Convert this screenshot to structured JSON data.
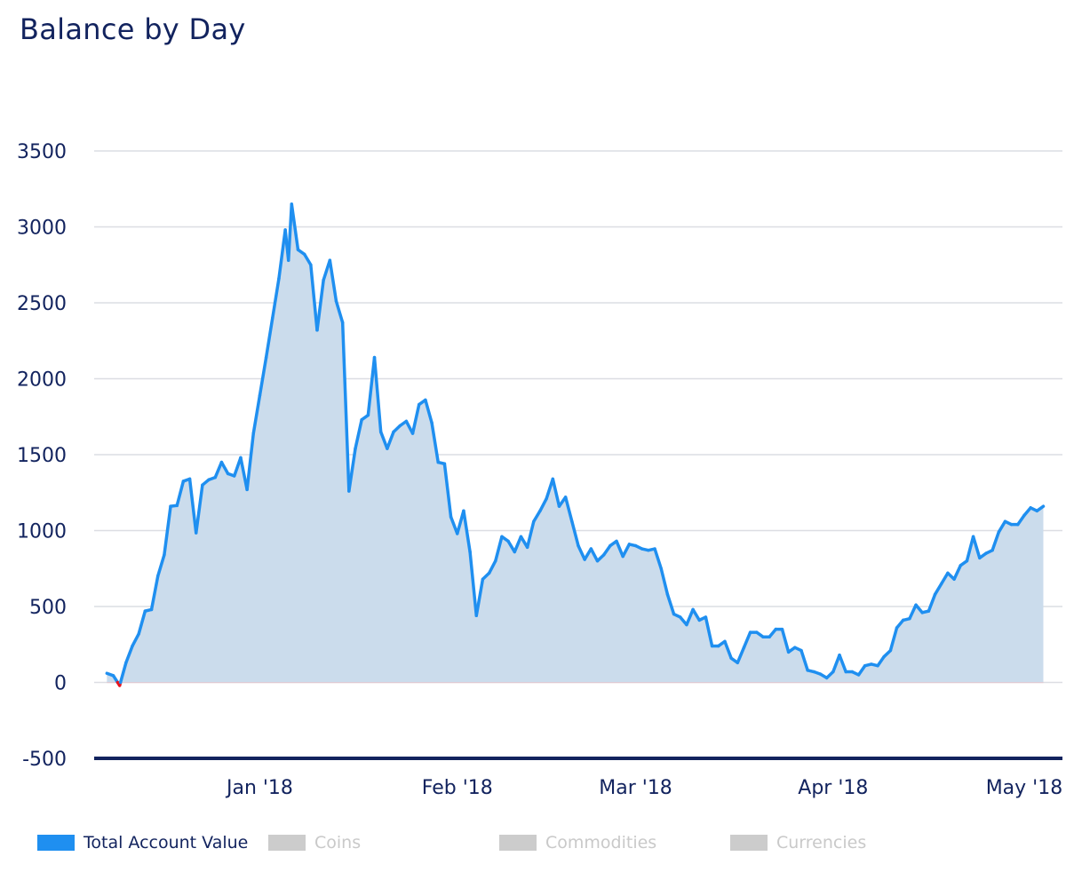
{
  "title": "Balance by Day",
  "chart_data": {
    "type": "area",
    "title": "Balance by Day",
    "xlabel": "",
    "ylabel": "",
    "ylim": [
      -500,
      3500
    ],
    "y_ticks": [
      3500,
      3000,
      2500,
      2000,
      1500,
      1000,
      500,
      0,
      -500
    ],
    "x_ticks": [
      {
        "label": "Jan '18",
        "x": "2018-01-01"
      },
      {
        "label": "Feb '18",
        "x": "2018-02-01"
      },
      {
        "label": "Mar '18",
        "x": "2018-03-01"
      },
      {
        "label": "Apr '18",
        "x": "2018-04-01"
      },
      {
        "label": "May '18",
        "x": "2018-05-01"
      }
    ],
    "xlim": [
      "2017-12-06",
      "2018-05-07"
    ],
    "grid": true,
    "legend_position": "bottom",
    "series": [
      {
        "name": "Total Account Value",
        "color": "#1f8ff0",
        "negative_color": "#e8141e",
        "fill_color": "#cbdcec",
        "points": [
          [
            "2017-12-08",
            60
          ],
          [
            "2017-12-09",
            45
          ],
          [
            "2017-12-10",
            -20
          ],
          [
            "2017-12-11",
            130
          ],
          [
            "2017-12-12",
            240
          ],
          [
            "2017-12-13",
            320
          ],
          [
            "2017-12-14",
            470
          ],
          [
            "2017-12-15",
            480
          ],
          [
            "2017-12-16",
            700
          ],
          [
            "2017-12-17",
            840
          ],
          [
            "2017-12-18",
            1160
          ],
          [
            "2017-12-19",
            1165
          ],
          [
            "2017-12-20",
            1325
          ],
          [
            "2017-12-21",
            1340
          ],
          [
            "2017-12-22",
            985
          ],
          [
            "2017-12-23",
            1300
          ],
          [
            "2017-12-24",
            1335
          ],
          [
            "2017-12-25",
            1350
          ],
          [
            "2017-12-26",
            1450
          ],
          [
            "2017-12-27",
            1375
          ],
          [
            "2017-12-28",
            1360
          ],
          [
            "2017-12-29",
            1480
          ],
          [
            "2017-12-30",
            1270
          ],
          [
            "2017-12-31",
            1640
          ],
          [
            "2018-01-01",
            1890
          ],
          [
            "2018-01-02",
            2140
          ],
          [
            "2018-01-03",
            2400
          ],
          [
            "2018-01-04",
            2660
          ],
          [
            "2018-01-05",
            2980
          ],
          [
            "2018-01-05T12:00",
            2780
          ],
          [
            "2018-01-06",
            3150
          ],
          [
            "2018-01-07",
            2850
          ],
          [
            "2018-01-08",
            2820
          ],
          [
            "2018-01-09",
            2750
          ],
          [
            "2018-01-10",
            2320
          ],
          [
            "2018-01-11",
            2650
          ],
          [
            "2018-01-12",
            2780
          ],
          [
            "2018-01-13",
            2510
          ],
          [
            "2018-01-14",
            2370
          ],
          [
            "2018-01-15",
            1260
          ],
          [
            "2018-01-16",
            1540
          ],
          [
            "2018-01-17",
            1730
          ],
          [
            "2018-01-18",
            1760
          ],
          [
            "2018-01-19",
            2140
          ],
          [
            "2018-01-20",
            1650
          ],
          [
            "2018-01-21",
            1540
          ],
          [
            "2018-01-22",
            1650
          ],
          [
            "2018-01-23",
            1690
          ],
          [
            "2018-01-24",
            1720
          ],
          [
            "2018-01-25",
            1640
          ],
          [
            "2018-01-26",
            1830
          ],
          [
            "2018-01-27",
            1860
          ],
          [
            "2018-01-28",
            1710
          ],
          [
            "2018-01-29",
            1450
          ],
          [
            "2018-01-30",
            1440
          ],
          [
            "2018-01-31",
            1090
          ],
          [
            "2018-02-01",
            980
          ],
          [
            "2018-02-02",
            1130
          ],
          [
            "2018-02-03",
            860
          ],
          [
            "2018-02-04",
            440
          ],
          [
            "2018-02-05",
            680
          ],
          [
            "2018-02-06",
            720
          ],
          [
            "2018-02-07",
            800
          ],
          [
            "2018-02-08",
            960
          ],
          [
            "2018-02-09",
            930
          ],
          [
            "2018-02-10",
            860
          ],
          [
            "2018-02-11",
            960
          ],
          [
            "2018-02-12",
            890
          ],
          [
            "2018-02-13",
            1060
          ],
          [
            "2018-02-14",
            1130
          ],
          [
            "2018-02-15",
            1210
          ],
          [
            "2018-02-16",
            1340
          ],
          [
            "2018-02-17",
            1160
          ],
          [
            "2018-02-18",
            1220
          ],
          [
            "2018-02-19",
            1060
          ],
          [
            "2018-02-20",
            900
          ],
          [
            "2018-02-21",
            810
          ],
          [
            "2018-02-22",
            880
          ],
          [
            "2018-02-23",
            800
          ],
          [
            "2018-02-24",
            840
          ],
          [
            "2018-02-25",
            900
          ],
          [
            "2018-02-26",
            930
          ],
          [
            "2018-02-27",
            830
          ],
          [
            "2018-02-28",
            910
          ],
          [
            "2018-03-01",
            900
          ],
          [
            "2018-03-02",
            880
          ],
          [
            "2018-03-03",
            870
          ],
          [
            "2018-03-04",
            880
          ],
          [
            "2018-03-05",
            750
          ],
          [
            "2018-03-06",
            580
          ],
          [
            "2018-03-07",
            450
          ],
          [
            "2018-03-08",
            430
          ],
          [
            "2018-03-09",
            380
          ],
          [
            "2018-03-10",
            480
          ],
          [
            "2018-03-11",
            410
          ],
          [
            "2018-03-12",
            430
          ],
          [
            "2018-03-13",
            240
          ],
          [
            "2018-03-14",
            240
          ],
          [
            "2018-03-15",
            270
          ],
          [
            "2018-03-16",
            160
          ],
          [
            "2018-03-17",
            130
          ],
          [
            "2018-03-18",
            230
          ],
          [
            "2018-03-19",
            330
          ],
          [
            "2018-03-20",
            330
          ],
          [
            "2018-03-21",
            300
          ],
          [
            "2018-03-22",
            300
          ],
          [
            "2018-03-23",
            350
          ],
          [
            "2018-03-24",
            350
          ],
          [
            "2018-03-25",
            200
          ],
          [
            "2018-03-26",
            230
          ],
          [
            "2018-03-27",
            210
          ],
          [
            "2018-03-28",
            80
          ],
          [
            "2018-03-29",
            70
          ],
          [
            "2018-03-30",
            55
          ],
          [
            "2018-03-31",
            30
          ],
          [
            "2018-04-01",
            70
          ],
          [
            "2018-04-02",
            180
          ],
          [
            "2018-04-03",
            70
          ],
          [
            "2018-04-04",
            70
          ],
          [
            "2018-04-05",
            50
          ],
          [
            "2018-04-06",
            110
          ],
          [
            "2018-04-07",
            120
          ],
          [
            "2018-04-08",
            110
          ],
          [
            "2018-04-09",
            170
          ],
          [
            "2018-04-10",
            210
          ],
          [
            "2018-04-11",
            360
          ],
          [
            "2018-04-12",
            410
          ],
          [
            "2018-04-13",
            420
          ],
          [
            "2018-04-14",
            510
          ],
          [
            "2018-04-15",
            460
          ],
          [
            "2018-04-16",
            470
          ],
          [
            "2018-04-17",
            580
          ],
          [
            "2018-04-18",
            650
          ],
          [
            "2018-04-19",
            720
          ],
          [
            "2018-04-20",
            680
          ],
          [
            "2018-04-21",
            770
          ],
          [
            "2018-04-22",
            800
          ],
          [
            "2018-04-23",
            960
          ],
          [
            "2018-04-24",
            820
          ],
          [
            "2018-04-25",
            850
          ],
          [
            "2018-04-26",
            870
          ],
          [
            "2018-04-27",
            990
          ],
          [
            "2018-04-28",
            1060
          ],
          [
            "2018-04-29",
            1040
          ],
          [
            "2018-04-30",
            1040
          ],
          [
            "2018-05-01",
            1100
          ],
          [
            "2018-05-02",
            1150
          ],
          [
            "2018-05-03",
            1130
          ],
          [
            "2018-05-04",
            1160
          ]
        ]
      }
    ]
  },
  "legend": [
    {
      "label": "Total Account Value",
      "color": "#1f8ff0",
      "active": true
    },
    {
      "label": "Coins",
      "color": "#cccccc",
      "active": false
    },
    {
      "label": "Commodities",
      "color": "#cccccc",
      "active": false
    },
    {
      "label": "Currencies",
      "color": "#cccccc",
      "active": false
    }
  ]
}
